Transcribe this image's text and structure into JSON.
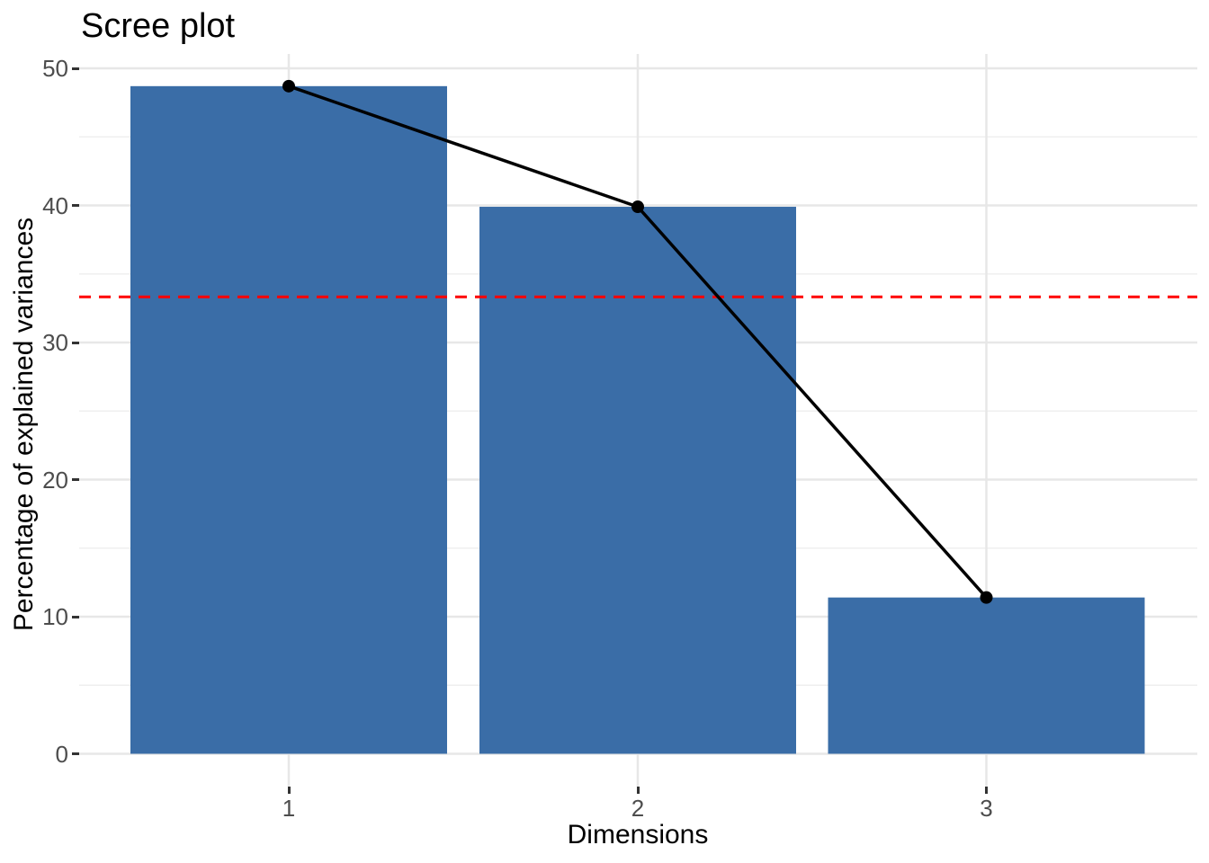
{
  "chart_data": {
    "type": "bar",
    "subtype": "scree-plot-with-line-overlay",
    "title": "Scree plot",
    "xlabel": "Dimensions",
    "ylabel": "Percentage of explained variances",
    "categories": [
      "1",
      "2",
      "3"
    ],
    "values": [
      48.7,
      39.9,
      11.4
    ],
    "line_series": {
      "name": "explained-variance-line",
      "values": [
        48.7,
        39.9,
        11.4
      ]
    },
    "reference_line": {
      "value": 33.33,
      "orientation": "horizontal",
      "style": "dashed",
      "color": "#FF0000"
    },
    "y_major_ticks": [
      0,
      10,
      20,
      30,
      40,
      50
    ],
    "y_minor_gridlines": [
      5,
      15,
      25,
      35,
      45
    ],
    "ylim": [
      -2.4,
      51.1
    ],
    "grid": "on",
    "legend": "none",
    "colors": {
      "bar_fill": "#3A6DA7",
      "line": "#000000",
      "point": "#000000",
      "grid_major": "#E7E7E7",
      "grid_minor": "#EFEFEF",
      "tick_text": "#4D4D4D",
      "axis_tick_mark": "#333333",
      "title_text": "#000000",
      "background": "#FFFFFF"
    }
  }
}
